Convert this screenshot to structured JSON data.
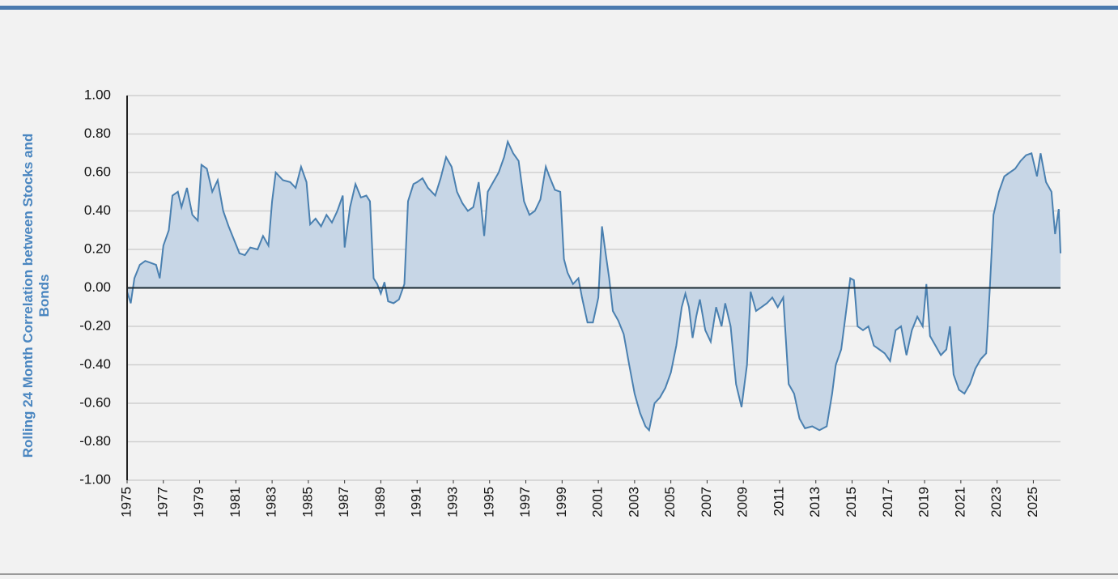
{
  "chart_data": {
    "type": "area",
    "ylabel": "Rolling 24 Month Correlation between Stocks and Bonds",
    "color": "#4a80b0",
    "fill": "#c7d6e6",
    "grid": true,
    "xlim": [
      1975,
      2026.5
    ],
    "xticks": [
      1975,
      1977,
      1979,
      1981,
      1983,
      1985,
      1987,
      1989,
      1991,
      1993,
      1995,
      1997,
      1999,
      2001,
      2003,
      2005,
      2007,
      2009,
      2011,
      2013,
      2015,
      2017,
      2019,
      2021,
      2023,
      2025
    ],
    "ylim": [
      -1,
      1
    ],
    "yticks": [
      {
        "value": -1,
        "label": "-1.00"
      },
      {
        "value": -0.8,
        "label": "-0.80"
      },
      {
        "value": -0.6,
        "label": "-0.60"
      },
      {
        "value": -0.4,
        "label": "-0.40"
      },
      {
        "value": -0.2,
        "label": "-0.20"
      },
      {
        "value": 0,
        "label": "0.00"
      },
      {
        "value": 0.2,
        "label": "0.20"
      },
      {
        "value": 0.4,
        "label": "0.40"
      },
      {
        "value": 0.6,
        "label": "0.60"
      },
      {
        "value": 0.8,
        "label": "0.80"
      },
      {
        "value": 1,
        "label": "1.00"
      }
    ],
    "x": [
      1975.0,
      1975.2,
      1975.4,
      1975.7,
      1976.0,
      1976.3,
      1976.6,
      1976.8,
      1977.0,
      1977.3,
      1977.5,
      1977.8,
      1978.0,
      1978.3,
      1978.6,
      1978.9,
      1979.1,
      1979.4,
      1979.7,
      1980.0,
      1980.3,
      1980.6,
      1980.9,
      1981.2,
      1981.5,
      1981.8,
      1982.2,
      1982.5,
      1982.8,
      1983.0,
      1983.2,
      1983.6,
      1984.0,
      1984.3,
      1984.6,
      1984.9,
      1985.1,
      1985.4,
      1985.7,
      1986.0,
      1986.3,
      1986.6,
      1986.9,
      1987.0,
      1987.3,
      1987.6,
      1987.9,
      1988.2,
      1988.4,
      1988.6,
      1988.8,
      1989.0,
      1989.2,
      1989.4,
      1989.7,
      1990.0,
      1990.3,
      1990.5,
      1990.8,
      1991.0,
      1991.3,
      1991.6,
      1992.0,
      1992.3,
      1992.6,
      1992.9,
      1993.2,
      1993.5,
      1993.8,
      1994.1,
      1994.4,
      1994.7,
      1994.9,
      1995.2,
      1995.5,
      1995.8,
      1996.0,
      1996.3,
      1996.6,
      1996.9,
      1997.2,
      1997.5,
      1997.8,
      1998.1,
      1998.3,
      1998.6,
      1998.9,
      1999.1,
      1999.3,
      1999.6,
      1999.9,
      2000.1,
      2000.4,
      2000.7,
      2001.0,
      2001.2,
      2001.4,
      2001.6,
      2001.8,
      2002.1,
      2002.4,
      2002.7,
      2003.0,
      2003.3,
      2003.6,
      2003.8,
      2004.1,
      2004.4,
      2004.7,
      2005.0,
      2005.3,
      2005.6,
      2005.8,
      2006.0,
      2006.2,
      2006.4,
      2006.6,
      2006.9,
      2007.2,
      2007.5,
      2007.8,
      2008.0,
      2008.3,
      2008.6,
      2008.9,
      2009.2,
      2009.4,
      2009.7,
      2010.0,
      2010.3,
      2010.6,
      2010.9,
      2011.2,
      2011.5,
      2011.8,
      2012.1,
      2012.4,
      2012.8,
      2013.2,
      2013.6,
      2013.9,
      2014.1,
      2014.4,
      2014.7,
      2014.9,
      2015.1,
      2015.3,
      2015.6,
      2015.9,
      2016.2,
      2016.5,
      2016.8,
      2017.1,
      2017.4,
      2017.7,
      2018.0,
      2018.3,
      2018.6,
      2018.9,
      2019.1,
      2019.3,
      2019.6,
      2019.9,
      2020.2,
      2020.4,
      2020.6,
      2020.9,
      2021.2,
      2021.5,
      2021.8,
      2022.1,
      2022.4,
      2022.6,
      2022.8,
      2023.1,
      2023.4,
      2023.7,
      2024.0,
      2024.3,
      2024.6,
      2024.9,
      2025.2,
      2025.4,
      2025.7,
      2026.0,
      2026.2,
      2026.4,
      2026.5
    ],
    "values": [
      -0.02,
      -0.08,
      0.05,
      0.12,
      0.14,
      0.13,
      0.12,
      0.05,
      0.22,
      0.3,
      0.48,
      0.5,
      0.42,
      0.52,
      0.38,
      0.35,
      0.64,
      0.62,
      0.5,
      0.56,
      0.4,
      0.32,
      0.25,
      0.18,
      0.17,
      0.21,
      0.2,
      0.27,
      0.22,
      0.45,
      0.6,
      0.56,
      0.55,
      0.52,
      0.63,
      0.55,
      0.33,
      0.36,
      0.32,
      0.38,
      0.34,
      0.4,
      0.48,
      0.21,
      0.42,
      0.54,
      0.47,
      0.48,
      0.45,
      0.05,
      0.02,
      -0.03,
      0.03,
      -0.07,
      -0.08,
      -0.06,
      0.02,
      0.45,
      0.54,
      0.55,
      0.57,
      0.52,
      0.48,
      0.57,
      0.68,
      0.63,
      0.5,
      0.44,
      0.4,
      0.42,
      0.55,
      0.27,
      0.5,
      0.55,
      0.6,
      0.68,
      0.76,
      0.7,
      0.66,
      0.45,
      0.38,
      0.4,
      0.46,
      0.63,
      0.58,
      0.51,
      0.5,
      0.15,
      0.08,
      0.02,
      0.05,
      -0.05,
      -0.18,
      -0.18,
      -0.05,
      0.32,
      0.18,
      0.05,
      -0.12,
      -0.17,
      -0.24,
      -0.4,
      -0.55,
      -0.65,
      -0.72,
      -0.74,
      -0.6,
      -0.57,
      -0.52,
      -0.44,
      -0.3,
      -0.1,
      -0.03,
      -0.1,
      -0.26,
      -0.15,
      -0.06,
      -0.22,
      -0.28,
      -0.1,
      -0.2,
      -0.08,
      -0.2,
      -0.5,
      -0.62,
      -0.4,
      -0.02,
      -0.12,
      -0.1,
      -0.08,
      -0.05,
      -0.1,
      -0.05,
      -0.5,
      -0.55,
      -0.68,
      -0.73,
      -0.72,
      -0.74,
      -0.72,
      -0.55,
      -0.4,
      -0.32,
      -0.1,
      0.05,
      0.04,
      -0.2,
      -0.22,
      -0.2,
      -0.3,
      -0.32,
      -0.34,
      -0.38,
      -0.22,
      -0.2,
      -0.35,
      -0.22,
      -0.15,
      -0.2,
      0.02,
      -0.25,
      -0.3,
      -0.35,
      -0.32,
      -0.2,
      -0.45,
      -0.53,
      -0.55,
      -0.5,
      -0.42,
      -0.37,
      -0.34,
      0.0,
      0.38,
      0.5,
      0.58,
      0.6,
      0.62,
      0.66,
      0.69,
      0.7,
      0.58,
      0.7,
      0.55,
      0.5,
      0.28,
      0.41,
      0.18
    ]
  }
}
